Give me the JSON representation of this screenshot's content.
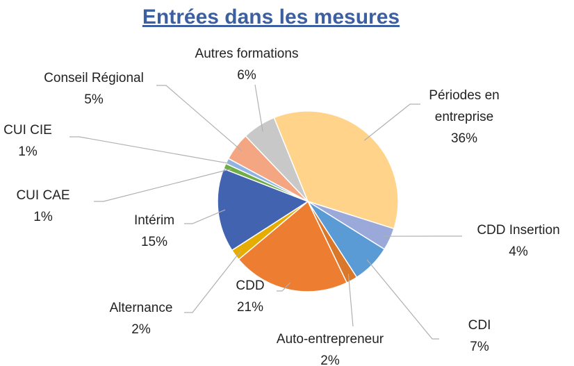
{
  "chart_data": {
    "type": "pie",
    "title": "Entrées dans les mesures",
    "categories": [
      "Périodes en entreprise",
      "CDD Insertion",
      "CDI",
      "Auto-entrepreneur",
      "CDD",
      "Alternance",
      "Intérim",
      "CUI CAE",
      "CUI CIE",
      "Conseil Régional",
      "Autres formations"
    ],
    "values": [
      36,
      4,
      7,
      2,
      21,
      2,
      15,
      1,
      1,
      5,
      6
    ],
    "value_labels": [
      "36%",
      "4%",
      "7%",
      "2%",
      "21%",
      "2%",
      "15%",
      "1%",
      "1%",
      "5%",
      "6%"
    ],
    "colors": [
      "#ffd38a",
      "#9aa9d9",
      "#5b9bd5",
      "#d9772b",
      "#ed7d31",
      "#e6ac00",
      "#4263b0",
      "#70ad47",
      "#8fb4e3",
      "#f4a582",
      "#c8c8c8"
    ]
  }
}
